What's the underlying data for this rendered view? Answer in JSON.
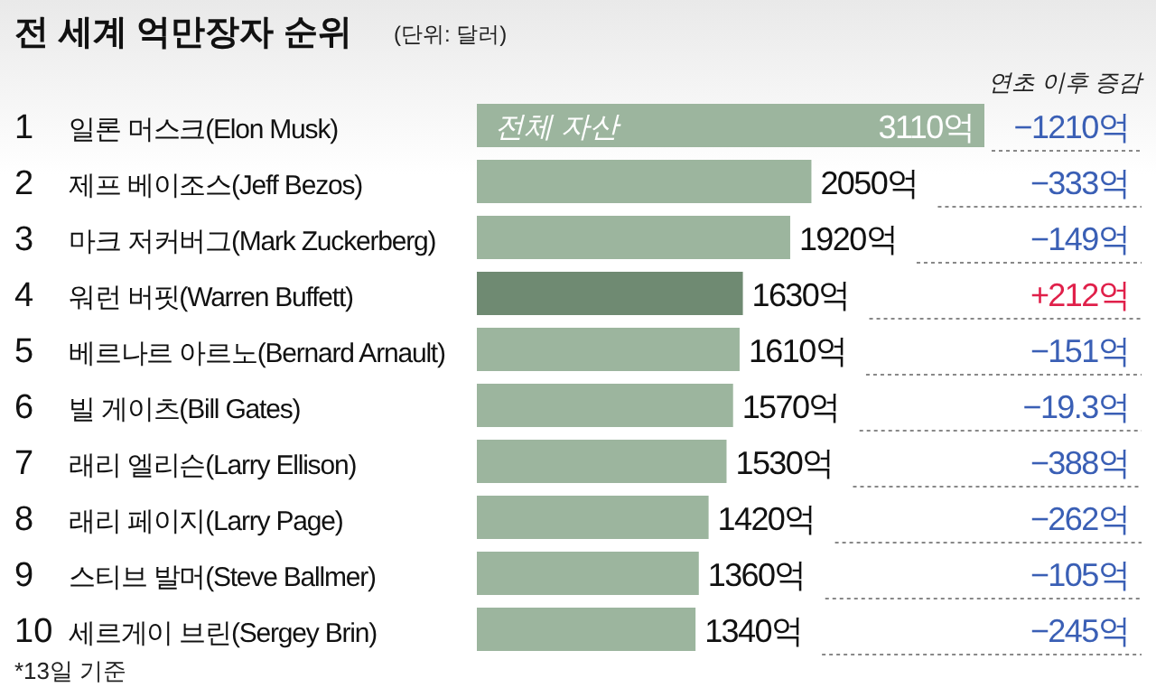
{
  "chart_data": {
    "type": "bar",
    "orientation": "horizontal",
    "title": "전 세계 억만장자 순위",
    "subtitle": "(단위: 달러)",
    "categories": [
      "1 일론 머스크(Elon Musk)",
      "2 제프 베이조스(Jeff Bezos)",
      "3 마크 저커버그(Mark Zuckerberg)",
      "4 워런 버핏(Warren Buffett)",
      "5 베르나르 아르노(Bernard Arnault)",
      "6 빌 게이츠(Bill Gates)",
      "7 래리 엘리슨(Larry Ellison)",
      "8 래리 페이지(Larry Page)",
      "9 스티브 발머(Steve Ballmer)",
      "10 세르게이 브린(Sergey Brin)"
    ],
    "values": [
      3110,
      2050,
      1920,
      1630,
      1610,
      1570,
      1530,
      1420,
      1360,
      1340
    ],
    "value_labels": [
      "3110억",
      "2050억",
      "1920억",
      "1630억",
      "1610억",
      "1570억",
      "1530억",
      "1420억",
      "1360억",
      "1340억"
    ],
    "colors": [
      "#9cb59e",
      "#9cb59e",
      "#9cb59e",
      "#6f8a72",
      "#9cb59e",
      "#9cb59e",
      "#9cb59e",
      "#9cb59e",
      "#9cb59e",
      "#9cb59e"
    ],
    "annotations": [
      "전체 자산",
      "연초 이후 증감",
      "*13일 기준",
      "−1210억",
      "−333억",
      "−149억",
      "+212억",
      "−151억",
      "−19.3억",
      "−388억",
      "−262억",
      "−105억",
      "−245억"
    ],
    "tick_labels": "y"
  }
}
